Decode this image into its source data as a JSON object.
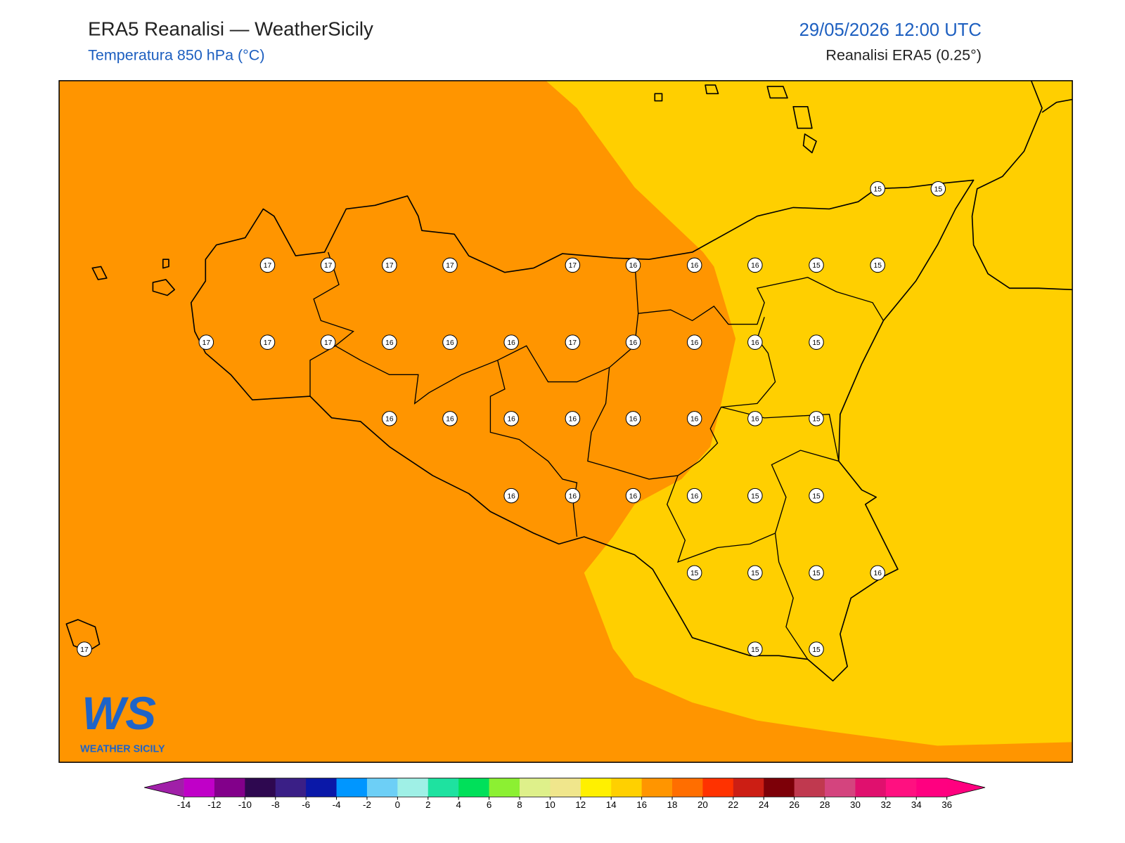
{
  "header": {
    "title": "ERA5 Reanalisi — WeatherSicily",
    "subtitle": "Temperatura 850 hPa (°C)",
    "datetime": "29/05/2026 12:00 UTC",
    "source": "Reanalisi ERA5 (0.25°)"
  },
  "map": {
    "background_color": "#ff9500",
    "region_color": "#ffcf00",
    "labels": [
      15,
      15,
      17,
      17,
      17,
      17,
      17,
      16,
      16,
      16,
      15,
      15,
      17,
      17,
      17,
      16,
      16,
      16,
      17,
      16,
      16,
      16,
      15,
      16,
      16,
      16,
      16,
      16,
      16,
      16,
      15,
      16,
      16,
      16,
      16,
      15,
      15,
      15,
      15,
      15,
      16,
      17,
      15,
      15
    ]
  },
  "logo": {
    "mark": "WS",
    "name": "WEATHER SICILY"
  },
  "colorbar": {
    "ticks": [
      -14,
      -12,
      -10,
      -8,
      -6,
      -4,
      -2,
      0,
      2,
      4,
      6,
      8,
      10,
      12,
      14,
      16,
      18,
      20,
      22,
      24,
      26,
      28,
      30,
      32,
      34,
      36
    ],
    "colors": [
      "#c000c8",
      "#82008a",
      "#2e0850",
      "#3a1f86",
      "#0a18a8",
      "#0096ff",
      "#6dcff6",
      "#9ff0e6",
      "#1ee2a0",
      "#00e05a",
      "#8cf032",
      "#def08a",
      "#f0e68c",
      "#fff000",
      "#ffd000",
      "#ff9500",
      "#ff6e00",
      "#ff3200",
      "#cc1e14",
      "#7d0008",
      "#c0394f",
      "#d4447e",
      "#e0106e",
      "#ff1080",
      "#ff0080"
    ],
    "under_color": "#a020a8",
    "over_color": "#ff007f"
  }
}
